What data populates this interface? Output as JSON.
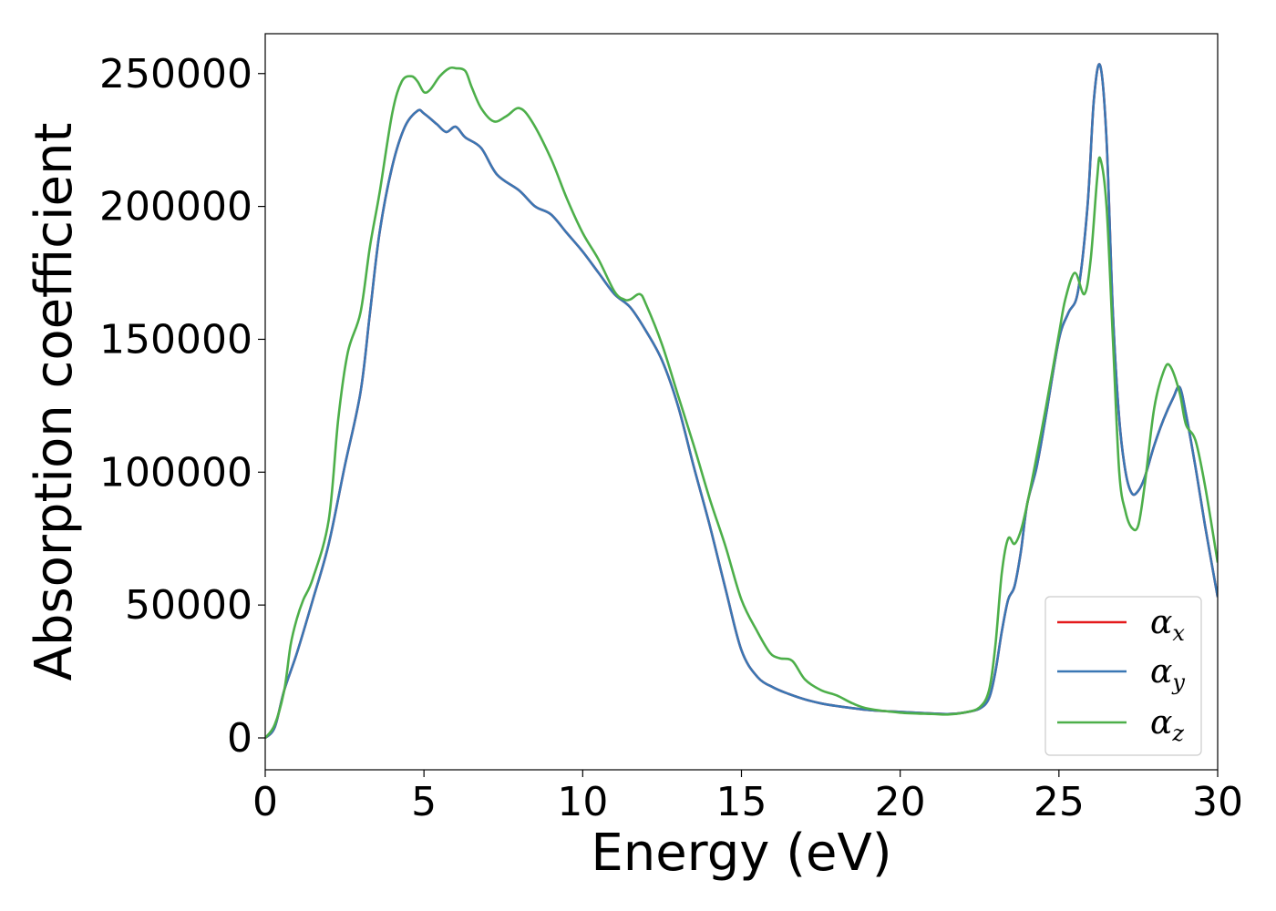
{
  "chart_data": {
    "type": "line",
    "title": "",
    "xlabel": "Energy (eV)",
    "ylabel": "Absorption coefficient",
    "xlim": [
      0,
      30
    ],
    "ylim": [
      -12000,
      265000
    ],
    "xticks": [
      0,
      5,
      10,
      15,
      20,
      25,
      30
    ],
    "xtick_labels": [
      "0",
      "5",
      "10",
      "15",
      "20",
      "25",
      "30"
    ],
    "yticks": [
      0,
      50000,
      100000,
      150000,
      200000,
      250000
    ],
    "ytick_labels": [
      "0",
      "50000",
      "100000",
      "150000",
      "200000",
      "250000"
    ],
    "grid": false,
    "legend_position": "lower-right",
    "series": [
      {
        "name": "α_x",
        "label_main": "α",
        "label_sub": "x",
        "color": "#e41a1c",
        "x": [
          0,
          0.3,
          0.6,
          1.0,
          1.5,
          2.0,
          2.5,
          3.0,
          3.3,
          3.6,
          4.0,
          4.4,
          4.8,
          5.0,
          5.4,
          5.7,
          6.0,
          6.3,
          6.8,
          7.3,
          8.0,
          8.5,
          9.0,
          9.5,
          10.0,
          10.5,
          11.0,
          11.5,
          12.0,
          12.5,
          13.0,
          13.5,
          14.0,
          14.5,
          15.0,
          15.5,
          16.0,
          16.5,
          17.0,
          17.5,
          18.0,
          19.0,
          20.0,
          21.0,
          21.5,
          22.0,
          22.5,
          22.8,
          23.0,
          23.2,
          23.4,
          23.6,
          23.8,
          24.0,
          24.3,
          24.6,
          25.0,
          25.3,
          25.6,
          25.9,
          26.1,
          26.3,
          26.5,
          26.7,
          26.9,
          27.1,
          27.3,
          27.5,
          27.7,
          28.0,
          28.3,
          28.6,
          28.8,
          29.0,
          29.3,
          29.6,
          30.0
        ],
        "values": [
          0,
          4000,
          18000,
          32000,
          52000,
          73000,
          102000,
          130000,
          160000,
          190000,
          215000,
          230000,
          236000,
          235000,
          231000,
          228000,
          230000,
          226000,
          222000,
          212000,
          206000,
          200000,
          197000,
          190000,
          183000,
          175000,
          167000,
          162000,
          153000,
          142000,
          125000,
          102000,
          80000,
          56000,
          33000,
          23000,
          19000,
          16500,
          14500,
          13000,
          12000,
          10500,
          9800,
          9200,
          9000,
          9500,
          11000,
          15000,
          25000,
          40000,
          52000,
          57000,
          70000,
          88000,
          102000,
          122000,
          150000,
          160000,
          168000,
          200000,
          240000,
          253000,
          225000,
          160000,
          120000,
          100000,
          92000,
          93000,
          98000,
          110000,
          120000,
          128000,
          132000,
          122000,
          102000,
          80000,
          53000
        ]
      },
      {
        "name": "α_y",
        "label_main": "α",
        "label_sub": "y",
        "color": "#3a77b4",
        "x": [
          0,
          0.3,
          0.6,
          1.0,
          1.5,
          2.0,
          2.5,
          3.0,
          3.3,
          3.6,
          4.0,
          4.4,
          4.8,
          5.0,
          5.4,
          5.7,
          6.0,
          6.3,
          6.8,
          7.3,
          8.0,
          8.5,
          9.0,
          9.5,
          10.0,
          10.5,
          11.0,
          11.5,
          12.0,
          12.5,
          13.0,
          13.5,
          14.0,
          14.5,
          15.0,
          15.5,
          16.0,
          16.5,
          17.0,
          17.5,
          18.0,
          19.0,
          20.0,
          21.0,
          21.5,
          22.0,
          22.5,
          22.8,
          23.0,
          23.2,
          23.4,
          23.6,
          23.8,
          24.0,
          24.3,
          24.6,
          25.0,
          25.3,
          25.6,
          25.9,
          26.1,
          26.3,
          26.5,
          26.7,
          26.9,
          27.1,
          27.3,
          27.5,
          27.7,
          28.0,
          28.3,
          28.6,
          28.8,
          29.0,
          29.3,
          29.6,
          30.0
        ],
        "values": [
          0,
          4000,
          18000,
          32000,
          52000,
          73000,
          102000,
          130000,
          160000,
          190000,
          215000,
          230000,
          236000,
          235000,
          231000,
          228000,
          230000,
          226000,
          222000,
          212000,
          206000,
          200000,
          197000,
          190000,
          183000,
          175000,
          167000,
          162000,
          153000,
          142000,
          125000,
          102000,
          80000,
          56000,
          33000,
          23000,
          19000,
          16500,
          14500,
          13000,
          12000,
          10500,
          9800,
          9200,
          9000,
          9500,
          11000,
          15000,
          25000,
          40000,
          52000,
          57000,
          70000,
          88000,
          102000,
          122000,
          150000,
          160000,
          168000,
          200000,
          240000,
          253000,
          225000,
          160000,
          120000,
          100000,
          92000,
          93000,
          98000,
          110000,
          120000,
          128000,
          132000,
          122000,
          102000,
          80000,
          53000
        ]
      },
      {
        "name": "α_z",
        "label_main": "α",
        "label_sub": "z",
        "color": "#4daf4a",
        "x": [
          0,
          0.3,
          0.6,
          0.8,
          1.0,
          1.2,
          1.5,
          2.0,
          2.3,
          2.6,
          3.0,
          3.3,
          3.6,
          4.0,
          4.3,
          4.6,
          4.8,
          5.0,
          5.2,
          5.5,
          5.8,
          6.0,
          6.3,
          6.5,
          6.8,
          7.2,
          7.6,
          8.0,
          8.4,
          9.0,
          9.5,
          10.0,
          10.5,
          11.0,
          11.3,
          11.5,
          11.8,
          12.0,
          12.5,
          13.0,
          13.5,
          14.0,
          14.5,
          15.0,
          15.5,
          15.9,
          16.2,
          16.6,
          17.0,
          17.5,
          18.0,
          18.5,
          19.0,
          20.0,
          21.0,
          21.5,
          22.0,
          22.5,
          22.8,
          23.0,
          23.2,
          23.4,
          23.6,
          23.8,
          24.0,
          24.3,
          24.6,
          25.0,
          25.2,
          25.5,
          25.8,
          26.0,
          26.2,
          26.3,
          26.5,
          26.7,
          26.9,
          27.1,
          27.3,
          27.5,
          27.7,
          28.0,
          28.3,
          28.5,
          28.8,
          29.0,
          29.3,
          29.6,
          30.0
        ],
        "values": [
          0,
          5000,
          18000,
          35000,
          45000,
          52000,
          60000,
          82000,
          120000,
          145000,
          160000,
          185000,
          205000,
          235000,
          247000,
          249000,
          247000,
          243000,
          244000,
          249000,
          252000,
          252000,
          251000,
          245000,
          237000,
          232000,
          234000,
          237000,
          232000,
          218000,
          203000,
          190000,
          180000,
          168000,
          165000,
          165000,
          167000,
          163000,
          148000,
          129000,
          110000,
          90000,
          72000,
          52000,
          40000,
          32000,
          30000,
          29000,
          22000,
          18000,
          16000,
          13000,
          11000,
          9500,
          9000,
          8800,
          9500,
          11500,
          18000,
          35000,
          62000,
          75000,
          73000,
          78000,
          88000,
          106000,
          125000,
          152000,
          165000,
          175000,
          167000,
          180000,
          210000,
          218000,
          200000,
          150000,
          100000,
          85000,
          79000,
          80000,
          95000,
          124000,
          138000,
          140000,
          130000,
          118000,
          112000,
          95000,
          66000
        ]
      }
    ]
  }
}
